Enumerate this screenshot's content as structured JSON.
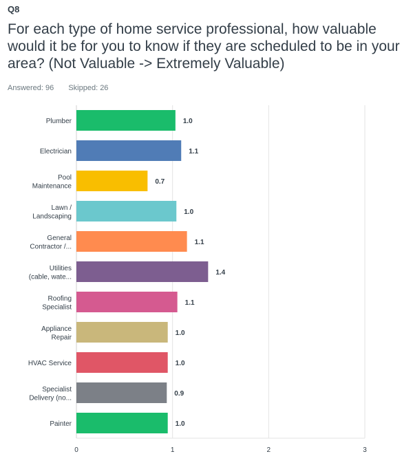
{
  "question": {
    "number": "Q8",
    "text": "For each type of home service professional, how valuable would it be for you to know if they are scheduled to be in your area? (Not Valuable -> Extremely Valuable)",
    "answered": "Answered: 96",
    "skipped": "Skipped: 26"
  },
  "chart_data": {
    "type": "bar",
    "orientation": "horizontal",
    "categories": [
      [
        "Plumber"
      ],
      [
        "Electrician"
      ],
      [
        "Pool",
        "Maintenance"
      ],
      [
        "Lawn /",
        "Landscaping"
      ],
      [
        "General",
        "Contractor /..."
      ],
      [
        "Utilities",
        "(cable, wate..."
      ],
      [
        "Roofing",
        "Specialist"
      ],
      [
        "Appliance",
        "Repair"
      ],
      [
        "HVAC Service"
      ],
      [
        "Specialist",
        "Delivery (no..."
      ],
      [
        "Painter"
      ]
    ],
    "values": [
      1.03,
      1.09,
      0.74,
      1.04,
      1.15,
      1.37,
      1.05,
      0.95,
      0.95,
      0.94,
      0.95
    ],
    "value_labels": [
      "1.0",
      "1.1",
      "0.7",
      "1.0",
      "1.1",
      "1.4",
      "1.1",
      "1.0",
      "1.0",
      "0.9",
      "1.0"
    ],
    "colors": [
      "#1abc6b",
      "#507cb6",
      "#f9be00",
      "#6bc8cd",
      "#ff8b4f",
      "#7d5e90",
      "#d55a90",
      "#c9b77b",
      "#e05666",
      "#7c8087",
      "#1abc6b"
    ],
    "xlim": [
      0,
      3
    ],
    "xticks": [
      0,
      1,
      2,
      3
    ],
    "xtick_labels": [
      "0",
      "1",
      "2",
      "3"
    ],
    "grid": true
  }
}
